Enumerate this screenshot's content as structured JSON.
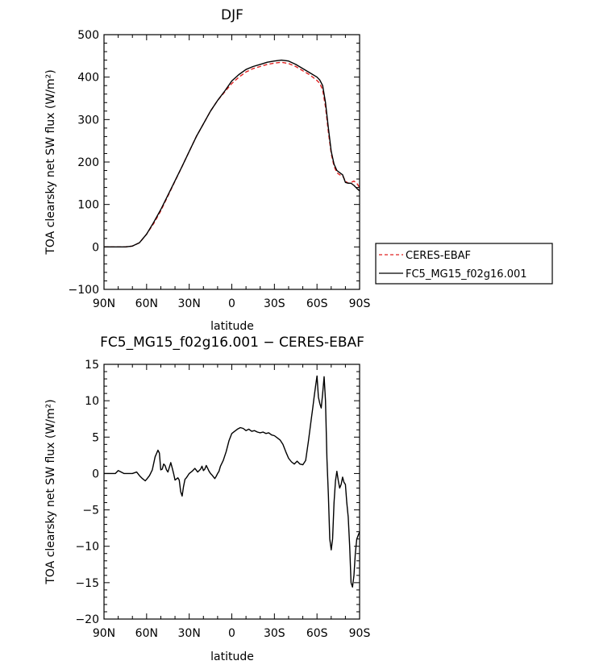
{
  "chart_data": [
    {
      "type": "line",
      "title": "DJF",
      "xlabel": "latitude",
      "ylabel": "TOA clearsky net SW flux (W/m²)",
      "xlim": [
        -90,
        90
      ],
      "ylim": [
        -100,
        500
      ],
      "x_ticks": [
        -90,
        -60,
        -30,
        0,
        30,
        60,
        90
      ],
      "x_tick_labels": [
        "90N",
        "60N",
        "30N",
        "0",
        "30S",
        "60S",
        "90S"
      ],
      "y_ticks": [
        -100,
        0,
        100,
        200,
        300,
        400,
        500
      ],
      "y_tick_labels": [
        "−100",
        "0",
        "100",
        "200",
        "300",
        "400",
        "500"
      ],
      "legend_position": "outside-right",
      "series": [
        {
          "name": "CERES-EBAF",
          "color": "#e02020",
          "style": "dashed",
          "x": [
            -90,
            -80,
            -75,
            -70,
            -65,
            -60,
            -55,
            -50,
            -45,
            -40,
            -35,
            -30,
            -25,
            -20,
            -15,
            -10,
            -5,
            0,
            5,
            10,
            15,
            20,
            25,
            30,
            35,
            40,
            45,
            50,
            55,
            60,
            62,
            64,
            66,
            68,
            70,
            72,
            74,
            76,
            78,
            80,
            82,
            84,
            86,
            88,
            90
          ],
          "y": [
            0,
            0,
            0,
            2,
            10,
            30,
            55,
            85,
            120,
            155,
            190,
            225,
            260,
            290,
            320,
            345,
            365,
            385,
            400,
            412,
            420,
            425,
            430,
            433,
            435,
            432,
            425,
            415,
            405,
            392,
            385,
            370,
            330,
            270,
            220,
            190,
            175,
            170,
            168,
            155,
            150,
            152,
            155,
            150,
            140
          ]
        },
        {
          "name": "FC5_MG15_f02g16.001",
          "color": "#000000",
          "style": "solid",
          "x": [
            -90,
            -80,
            -75,
            -70,
            -65,
            -60,
            -55,
            -50,
            -45,
            -40,
            -35,
            -30,
            -25,
            -20,
            -15,
            -10,
            -5,
            0,
            5,
            10,
            15,
            20,
            25,
            30,
            35,
            40,
            45,
            50,
            55,
            60,
            62,
            64,
            66,
            68,
            70,
            72,
            74,
            76,
            78,
            80,
            82,
            84,
            86,
            88,
            90
          ],
          "y": [
            0,
            0,
            0,
            2,
            10,
            30,
            58,
            88,
            122,
            156,
            190,
            225,
            260,
            290,
            320,
            345,
            367,
            391,
            406,
            418,
            425,
            430,
            435,
            438,
            440,
            438,
            430,
            420,
            410,
            400,
            393,
            380,
            340,
            280,
            225,
            195,
            180,
            175,
            170,
            152,
            150,
            150,
            145,
            138,
            132
          ]
        }
      ]
    },
    {
      "type": "line",
      "title": "FC5_MG15_f02g16.001 − CERES-EBAF",
      "xlabel": "latitude",
      "ylabel": "TOA clearsky net SW flux (W/m²)",
      "xlim": [
        -90,
        90
      ],
      "ylim": [
        -20,
        15
      ],
      "x_ticks": [
        -90,
        -60,
        -30,
        0,
        30,
        60,
        90
      ],
      "x_tick_labels": [
        "90N",
        "60N",
        "30N",
        "0",
        "30S",
        "60S",
        "90S"
      ],
      "y_ticks": [
        -20,
        -15,
        -10,
        -5,
        0,
        5,
        10,
        15
      ],
      "y_tick_labels": [
        "−20",
        "−15",
        "−10",
        "−5",
        "0",
        "5",
        "10",
        "15"
      ],
      "series": [
        {
          "color": "#000000",
          "style": "solid",
          "x": [
            -90,
            -86,
            -82,
            -80,
            -76,
            -72,
            -70,
            -67,
            -65,
            -63,
            -61,
            -60,
            -58,
            -56,
            -54,
            -52,
            -51,
            -50,
            -49,
            -48,
            -47,
            -46,
            -45,
            -43,
            -42,
            -41,
            -40,
            -38,
            -37,
            -36,
            -35,
            -34,
            -33,
            -32,
            -31,
            -30,
            -28,
            -26,
            -24,
            -22,
            -21,
            -20,
            -19,
            -18,
            -17,
            -16,
            -15,
            -14,
            -12,
            -11,
            -10,
            -9,
            -8,
            -6,
            -4,
            -2,
            0,
            2,
            4,
            6,
            8,
            10,
            12,
            14,
            16,
            18,
            20,
            22,
            24,
            26,
            28,
            30,
            32,
            34,
            36,
            38,
            40,
            42,
            44,
            46,
            48,
            50,
            52,
            54,
            56,
            57,
            58,
            59,
            60,
            61,
            62,
            63,
            64,
            65,
            66,
            67,
            68,
            69,
            70,
            71,
            72,
            73,
            74,
            75,
            76,
            77,
            78,
            79,
            80,
            81,
            82,
            83,
            84,
            85,
            86,
            87,
            88,
            89,
            90
          ],
          "y": [
            0,
            0,
            0,
            0.4,
            0,
            0,
            0,
            0.2,
            -0.3,
            -0.7,
            -1,
            -0.8,
            -0.3,
            0.5,
            2.3,
            3.2,
            2.8,
            0.5,
            0.6,
            1.3,
            1.1,
            0.5,
            0.2,
            1.5,
            0.8,
            0,
            -0.9,
            -0.6,
            -0.9,
            -2.5,
            -3.1,
            -1.8,
            -0.8,
            -0.6,
            -0.3,
            0,
            0.3,
            0.7,
            0.2,
            0.6,
            1,
            0.4,
            0.6,
            1.1,
            0.7,
            0.3,
            0,
            -0.2,
            -0.7,
            -0.4,
            0,
            0.3,
            1,
            1.8,
            3,
            4.5,
            5.5,
            5.8,
            6.1,
            6.3,
            6.2,
            5.9,
            6.1,
            5.8,
            5.9,
            5.7,
            5.6,
            5.7,
            5.5,
            5.6,
            5.3,
            5.2,
            4.9,
            4.6,
            4,
            3,
            2.1,
            1.6,
            1.3,
            1.7,
            1.3,
            1.2,
            1.8,
            4.5,
            7.5,
            9,
            10.5,
            12,
            13.4,
            10.5,
            9.6,
            9,
            11,
            13.3,
            10,
            2,
            -3,
            -9,
            -10.5,
            -9,
            -4,
            -1,
            0.3,
            -1,
            -2,
            -1.5,
            -0.5,
            -1.2,
            -1.5,
            -4,
            -6,
            -10,
            -15,
            -15.6,
            -14,
            -11,
            -9,
            -8.5,
            -8
          ]
        }
      ]
    }
  ]
}
